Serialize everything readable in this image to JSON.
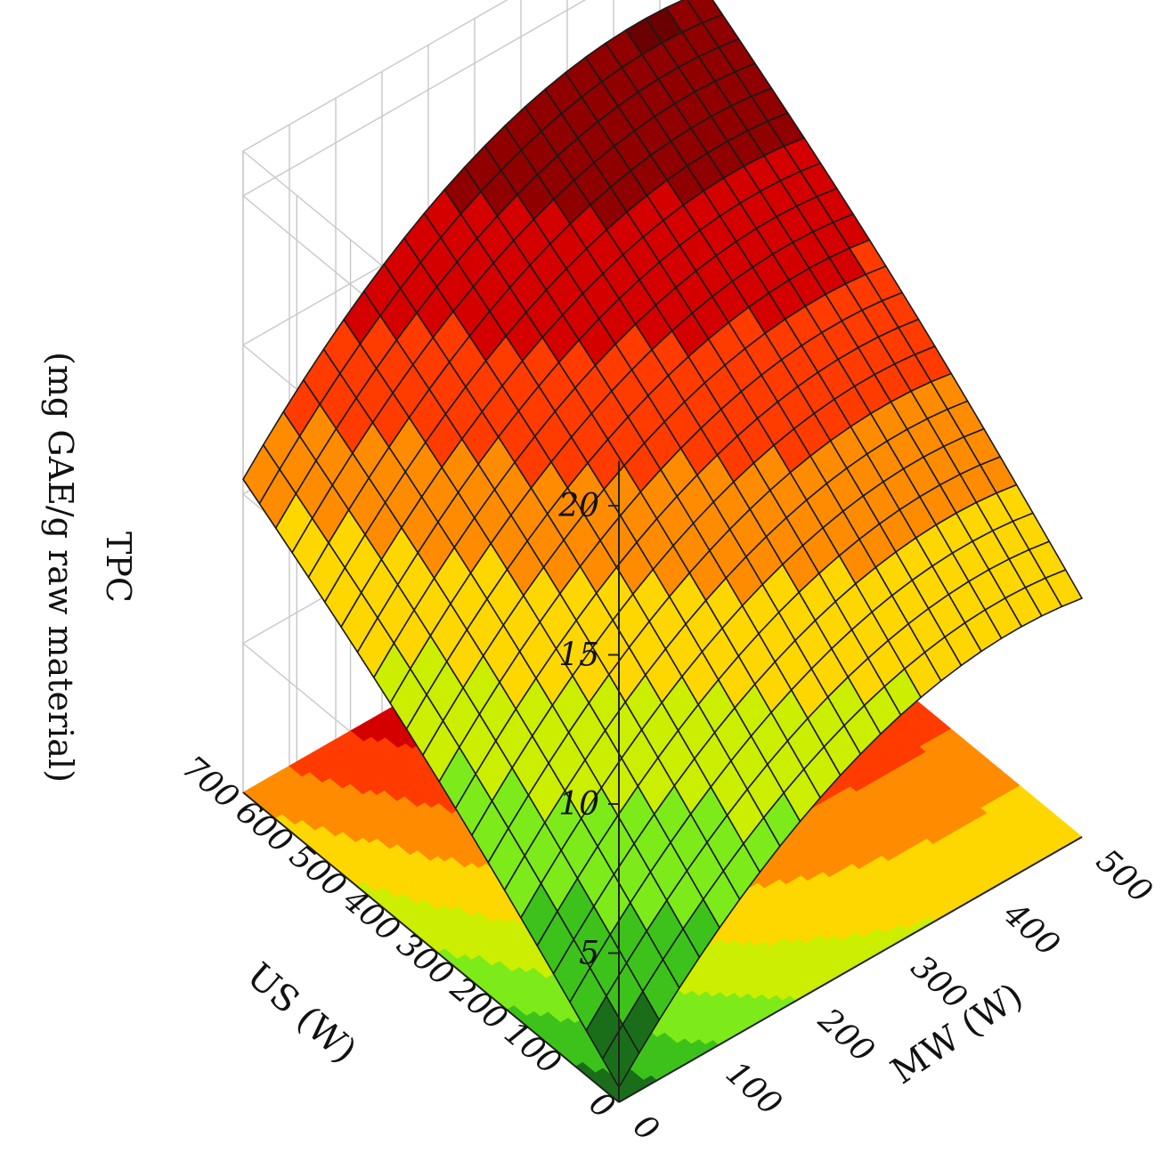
{
  "chart_data": {
    "type": "surface",
    "z_axis": {
      "title": "TPC",
      "subtitle": "(mg GAE/g raw material)",
      "ticks": [
        5,
        10,
        15,
        20
      ],
      "range": [
        0,
        20
      ]
    },
    "us_axis": {
      "title": "US (W)",
      "ticks": [
        0,
        100,
        200,
        300,
        400,
        500,
        600,
        700
      ],
      "range": [
        0,
        700
      ]
    },
    "mw_axis": {
      "title": "MW (W)",
      "ticks": [
        0,
        100,
        200,
        300,
        400,
        500
      ],
      "range": [
        0,
        500
      ]
    },
    "corner_values": [
      {
        "us": 0,
        "mw": 0,
        "tpc": 0.5
      },
      {
        "us": 700,
        "mw": 0,
        "tpc": 10.5
      },
      {
        "us": 0,
        "mw": 500,
        "tpc": 8
      },
      {
        "us": 700,
        "mw": 500,
        "tpc": 18
      }
    ],
    "max_value": {
      "us": 700,
      "mw": 300,
      "tpc": 19
    },
    "grid": true,
    "colormap": [
      "#1a6e1a",
      "#3cc21a",
      "#7dea1a",
      "#ccee00",
      "#ffd700",
      "#ff8c00",
      "#ff3b00",
      "#d40000",
      "#900000",
      "#6a0000"
    ]
  }
}
